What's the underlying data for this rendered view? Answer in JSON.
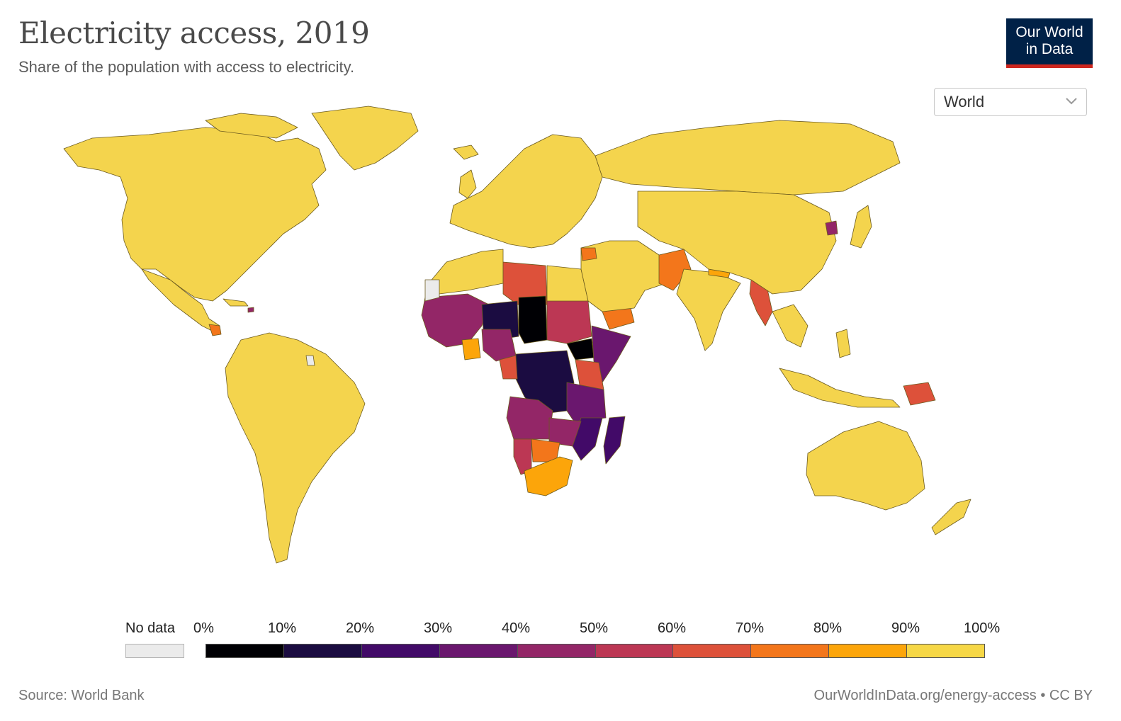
{
  "header": {
    "title": "Electricity access, 2019",
    "subtitle": "Share of the population with access to electricity.",
    "logo_line1": "Our World",
    "logo_line2": "in Data"
  },
  "region_select": {
    "value": "World"
  },
  "legend": {
    "no_data_label": "No data",
    "no_data_color": "#ebebeb",
    "ticks": [
      "0%",
      "10%",
      "20%",
      "30%",
      "40%",
      "50%",
      "60%",
      "70%",
      "80%",
      "90%",
      "100%"
    ],
    "colors": [
      "#000004",
      "#1b0c41",
      "#420a68",
      "#6a176e",
      "#932667",
      "#bc3754",
      "#dd513a",
      "#f3761b",
      "#fca50a",
      "#f6d746"
    ]
  },
  "footer": {
    "source": "Source: World Bank",
    "url": "OurWorldInData.org/energy-access • CC BY"
  },
  "colors": {
    "land_high": "#f4d44d",
    "ocean": "#ffffff",
    "border": "#5a4e1f"
  }
}
